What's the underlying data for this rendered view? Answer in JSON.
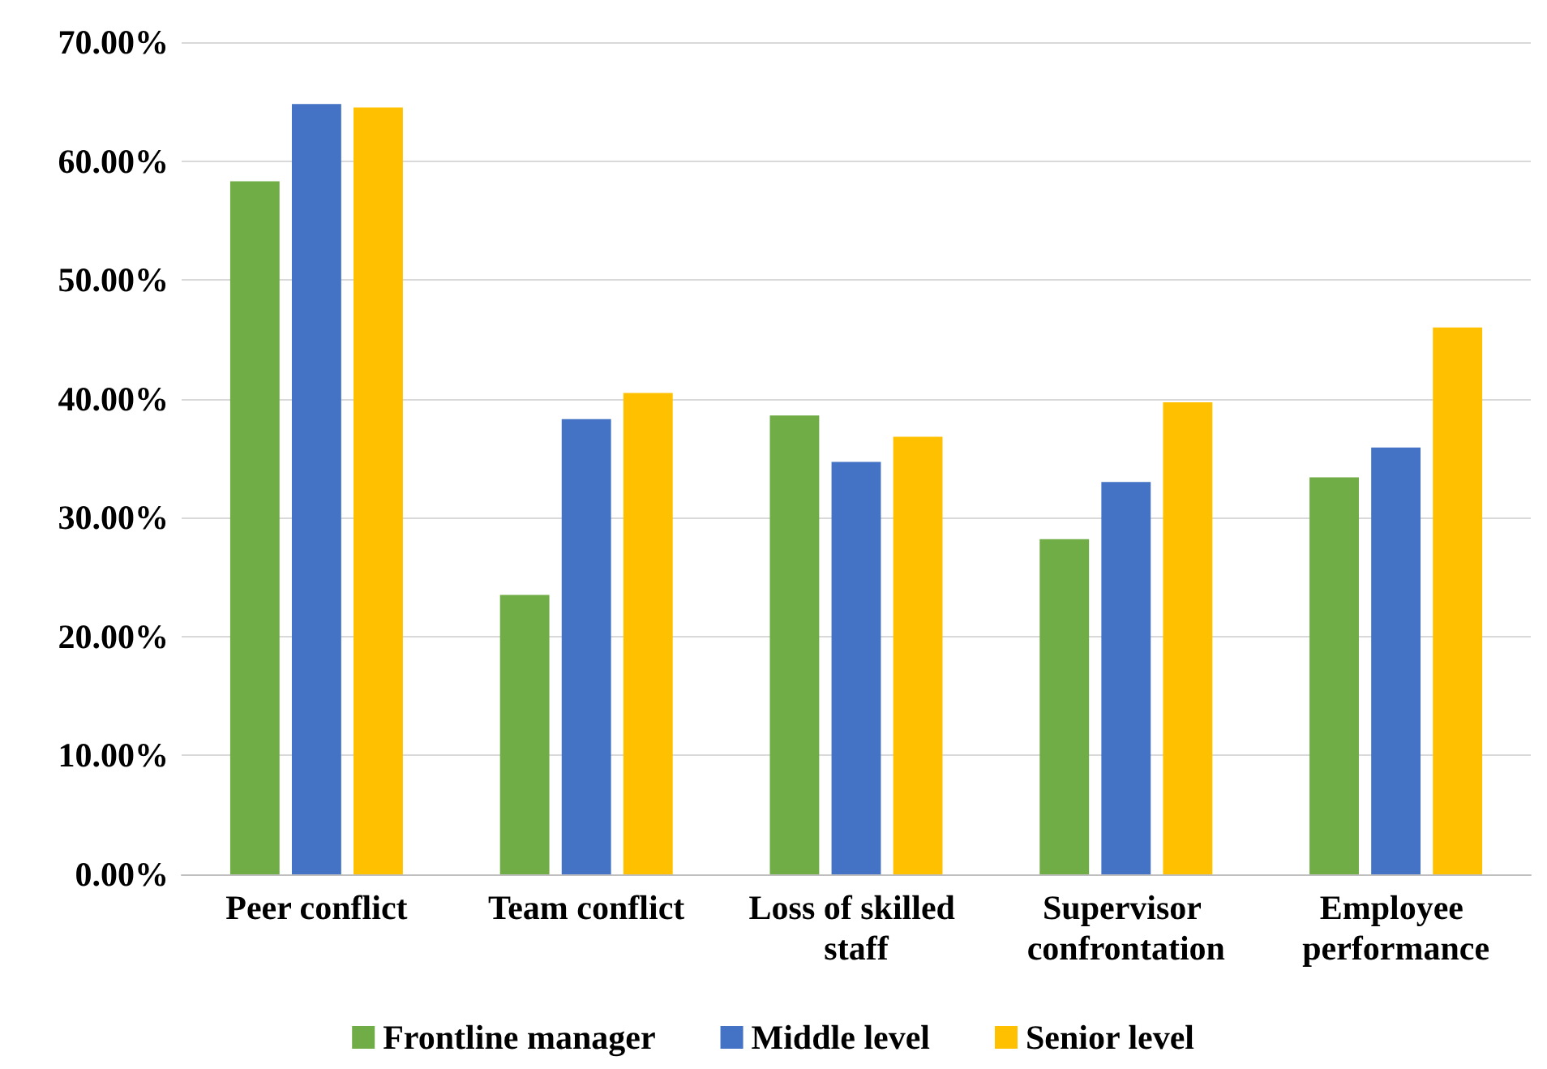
{
  "chart_data": {
    "type": "bar",
    "categories": [
      "Peer conflict",
      "Team conflict",
      "Loss of skilled staff",
      "Supervisor confrontation",
      "Employee performance"
    ],
    "series": [
      {
        "name": "Frontline manager",
        "color": "#70ad47",
        "values": [
          58.3,
          23.5,
          38.6,
          28.2,
          33.4
        ]
      },
      {
        "name": "Middle level",
        "color": "#4472c4",
        "values": [
          64.8,
          38.3,
          34.7,
          33.0,
          35.9
        ]
      },
      {
        "name": "Senior level",
        "color": "#ffc000",
        "values": [
          64.5,
          40.5,
          36.8,
          39.7,
          46.0
        ]
      }
    ],
    "ylim": [
      0,
      70
    ],
    "yticks": [
      {
        "value": 0,
        "label": "0.00%"
      },
      {
        "value": 10,
        "label": "10.00%"
      },
      {
        "value": 20,
        "label": "20.00%"
      },
      {
        "value": 30,
        "label": "30.00%"
      },
      {
        "value": 40,
        "label": "40.00%"
      },
      {
        "value": 50,
        "label": "50.00%"
      },
      {
        "value": 60,
        "label": "60.00%"
      },
      {
        "value": 70,
        "label": "70.00%"
      }
    ],
    "grid": "y",
    "legend": "bottom"
  }
}
